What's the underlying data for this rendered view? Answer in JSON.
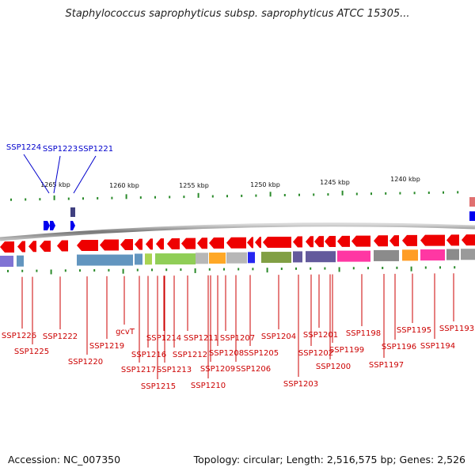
{
  "title": "Staphylococcus saprophyticus subsp. saprophyticus ATCC 15305...",
  "accession_label": "Accession: NC_007350",
  "summary_label": "Topology: circular; Length: 2,516,575 bp; Genes: 2,526",
  "scale_labels": [
    "1265 kbp",
    "1260 kbp",
    "1255 kbp",
    "1250 kbp",
    "1245 kbp",
    "1240 kbp"
  ],
  "forward_gene_labels": [
    "SSP1224",
    "SSP1223",
    "SSP1221"
  ],
  "reverse_gene_labels": [
    "SSP1226",
    "SSP1225",
    "SSP1222",
    "SSP1220",
    "SSP1219",
    "gcvT",
    "SSP1217",
    "SSP1216",
    "SSP1215",
    "SSP1214",
    "SSP1213",
    "SSP1212",
    "SSP1211",
    "SSP1210",
    "SSP1209",
    "SSP1208",
    "SSP1207",
    "SSP1206",
    "SSP1205",
    "SSP1204",
    "SSP1203",
    "SSP1202",
    "SSP1201",
    "SSP1200",
    "SSP1199",
    "SSP1198",
    "SSP1197",
    "SSP1196",
    "SSP1195",
    "SSP1194",
    "SSP1193"
  ],
  "colors": {
    "forward_gene": "#0000ee",
    "reverse_gene": "#ee0000",
    "forward_label": "#0000cc",
    "reverse_label": "#cc0000",
    "tick": "#2a8a2a",
    "backbone": "#888888"
  }
}
